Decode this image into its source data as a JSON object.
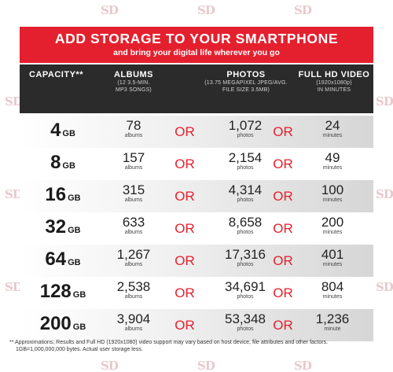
{
  "watermark": "SD",
  "banner": {
    "title": "ADD STORAGE TO YOUR SMARTPHONE",
    "subtitle": "and bring your digital life wherever you go"
  },
  "columns": {
    "capacity": {
      "title": "CAPACITY**"
    },
    "albums": {
      "title": "ALBUMS",
      "note_line1": "(12 3.5-MIN.",
      "note_line2": "MP3 SONGS)"
    },
    "photos": {
      "title": "PHOTOS",
      "note_line1": "(13.75 MEGAPIXEL JPEG/AVG.",
      "note_line2": "FILE SIZE 3.5MB)"
    },
    "video": {
      "title": "FULL HD VIDEO",
      "note_line1": "(1920x1080p)",
      "note_line2": "IN MINUTES"
    }
  },
  "or_label": "OR",
  "rows": [
    {
      "capacity": "4",
      "unit": "GB",
      "albums": "78",
      "albums_label": "albums",
      "photos": "1,072",
      "photos_label": "photos",
      "video": "24",
      "video_label": "minutes"
    },
    {
      "capacity": "8",
      "unit": "GB",
      "albums": "157",
      "albums_label": "albums",
      "photos": "2,154",
      "photos_label": "photos",
      "video": "49",
      "video_label": "minutes"
    },
    {
      "capacity": "16",
      "unit": "GB",
      "albums": "315",
      "albums_label": "albums",
      "photos": "4,314",
      "photos_label": "photos",
      "video": "100",
      "video_label": "minutes"
    },
    {
      "capacity": "32",
      "unit": "GB",
      "albums": "633",
      "albums_label": "albums",
      "photos": "8,658",
      "photos_label": "photos",
      "video": "200",
      "video_label": "minutes"
    },
    {
      "capacity": "64",
      "unit": "GB",
      "albums": "1,267",
      "albums_label": "albums",
      "photos": "17,316",
      "photos_label": "photos",
      "video": "401",
      "video_label": "minutes"
    },
    {
      "capacity": "128",
      "unit": "GB",
      "albums": "2,538",
      "albums_label": "albums",
      "photos": "34,691",
      "photos_label": "photos",
      "video": "804",
      "video_label": "minutes"
    },
    {
      "capacity": "200",
      "unit": "GB",
      "albums": "3,904",
      "albums_label": "albums",
      "photos": "53,348",
      "photos_label": "photos",
      "video": "1,236",
      "video_label": "minute"
    }
  ],
  "footnote": {
    "line1": "** Approximations; Results and Full HD (1920x1080) video support may vary based on host device, file attributes and other factors.",
    "line2": "1GB=1,000,000,000 bytes. Actual user storage less."
  },
  "colors": {
    "accent": "#e5202e",
    "header_bg": "#2b2b2b",
    "watermark": "#e8c9cc"
  }
}
